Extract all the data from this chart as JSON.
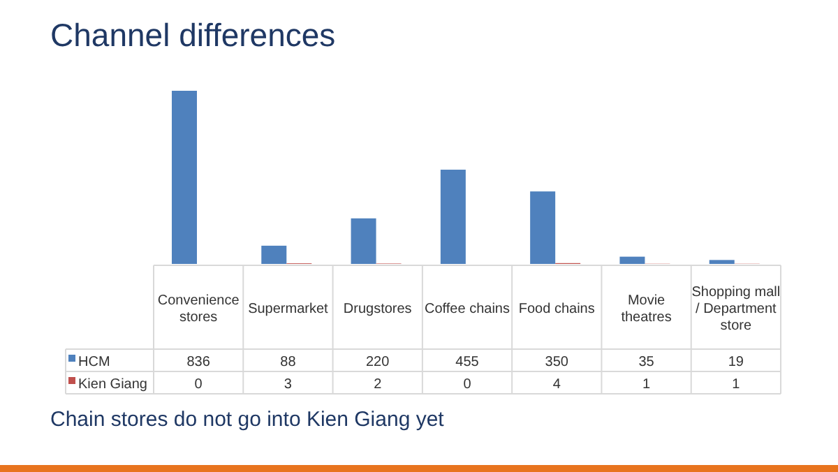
{
  "chart_data": {
    "type": "bar",
    "title": "Channel differences",
    "categories": [
      "Convenience stores",
      "Supermarket",
      "Drugstores",
      "Coffee chains",
      "Food chains",
      "Movie theatres",
      "Shopping mall / Department store"
    ],
    "series": [
      {
        "name": "HCM",
        "color": "#4f81bd",
        "values": [
          836,
          88,
          220,
          455,
          350,
          35,
          19
        ]
      },
      {
        "name": "Kien Giang",
        "color": "#c0504d",
        "values": [
          0,
          3,
          2,
          0,
          4,
          1,
          1
        ]
      }
    ],
    "data_labels": true,
    "legend": "bottom left",
    "annotations": [
      "Chain stores do not go into Kien Giang yet"
    ]
  }
}
